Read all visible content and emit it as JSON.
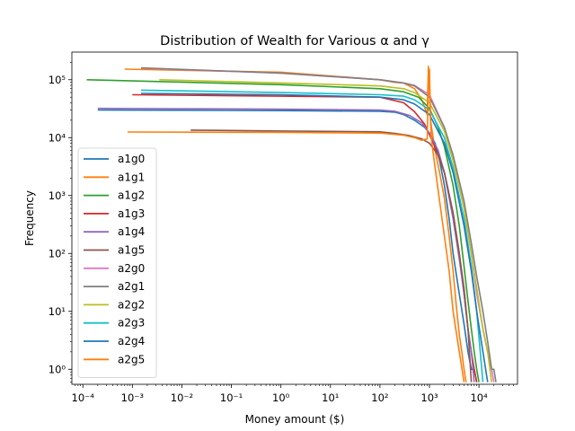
{
  "chart_data": {
    "type": "line",
    "title": "Distribution of Wealth for Various α and γ",
    "xlabel": "Money amount ($)",
    "ylabel": "Frequency",
    "xscale": "log",
    "yscale": "log",
    "xlim": [
      6e-05,
      60000
    ],
    "ylim": [
      0.55,
      300000
    ],
    "xticks": [
      {
        "value": 0.0001,
        "label": "10⁻⁴"
      },
      {
        "value": 0.001,
        "label": "10⁻³"
      },
      {
        "value": 0.01,
        "label": "10⁻²"
      },
      {
        "value": 0.1,
        "label": "10⁻¹"
      },
      {
        "value": 1,
        "label": "10⁰"
      },
      {
        "value": 10,
        "label": "10¹"
      },
      {
        "value": 100,
        "label": "10²"
      },
      {
        "value": 1000,
        "label": "10³"
      },
      {
        "value": 10000,
        "label": "10⁴"
      }
    ],
    "yticks": [
      {
        "value": 1,
        "label": "10⁰"
      },
      {
        "value": 10,
        "label": "10¹"
      },
      {
        "value": 100,
        "label": "10²"
      },
      {
        "value": 1000,
        "label": "10³"
      },
      {
        "value": 10000,
        "label": "10⁴"
      },
      {
        "value": 100000,
        "label": "10⁵"
      }
    ],
    "legend_position": "lower-left",
    "grid": false,
    "series": [
      {
        "name": "a1g0",
        "color": "#1f77b4",
        "x": [
          0.0002,
          1,
          100,
          200,
          300,
          500,
          800,
          1000,
          1300,
          1600,
          2000,
          2500,
          3000,
          4000,
          5000,
          6000,
          7000,
          8000,
          9000
        ],
        "y": [
          30000,
          29300,
          28500,
          27500,
          25000,
          20000,
          15000,
          12000,
          8000,
          4000,
          1500,
          400,
          100,
          20,
          6,
          2,
          1,
          1,
          0.6
        ]
      },
      {
        "name": "a1g1",
        "color": "#ff7f0e",
        "x": [
          0.0007,
          1,
          100,
          200,
          300,
          500,
          700,
          900,
          950,
          1000,
          1050,
          1100,
          1300,
          1600,
          2000,
          2500,
          3000,
          3500,
          4000,
          4500,
          5000,
          5500
        ],
        "y": [
          152000,
          135000,
          100000,
          90000,
          88000,
          70000,
          45000,
          25000,
          170000,
          100000,
          20000,
          15000,
          6000,
          2500,
          900,
          200,
          50,
          12,
          4,
          2,
          1,
          0.6
        ]
      },
      {
        "name": "a1g2",
        "color": "#2ca02c",
        "x": [
          0.00012,
          1,
          100,
          300,
          600,
          1000,
          1500,
          2000,
          3000,
          4000,
          5000,
          6000,
          7000,
          8000,
          9000,
          10000
        ],
        "y": [
          100000,
          82000,
          70000,
          62000,
          50000,
          32000,
          15000,
          7000,
          1500,
          300,
          60,
          15,
          5,
          2,
          1,
          0.6
        ]
      },
      {
        "name": "a1g3",
        "color": "#d62728",
        "x": [
          0.001,
          1,
          100,
          300,
          500,
          800,
          1200,
          2000,
          3000,
          4000,
          5000,
          6000,
          7000,
          8000,
          9000
        ],
        "y": [
          55000,
          52000,
          50000,
          40000,
          28000,
          17000,
          8000,
          2500,
          500,
          100,
          20,
          5,
          2,
          1,
          0.6
        ]
      },
      {
        "name": "a1g4",
        "color": "#9467bd",
        "x": [
          0.0002,
          1,
          100,
          200,
          400,
          700,
          1000,
          1500,
          2000,
          3000,
          4000,
          5000,
          6000,
          7000,
          8000
        ],
        "y": [
          32000,
          31000,
          30000,
          28500,
          24000,
          18000,
          12000,
          6000,
          2500,
          400,
          80,
          20,
          5,
          2,
          0.6
        ]
      },
      {
        "name": "a1g5",
        "color": "#8c564b",
        "x": [
          0.015,
          1,
          100,
          200,
          400,
          700,
          1000,
          1500,
          2000,
          3000,
          4000,
          5000,
          6000,
          7000
        ],
        "y": [
          13500,
          13000,
          12600,
          11800,
          10800,
          9500,
          8000,
          5000,
          2500,
          500,
          100,
          25,
          5,
          0.6
        ]
      },
      {
        "name": "a2g0",
        "color": "#e377c2",
        "x": [
          0.0015,
          1,
          100,
          300,
          500,
          1000,
          2000,
          3000,
          5000,
          7000,
          9000,
          12000,
          15000,
          18000,
          20000
        ],
        "y": [
          158000,
          130000,
          100000,
          88000,
          80000,
          55000,
          15000,
          4000,
          600,
          100,
          20,
          5,
          2,
          1,
          0.6
        ]
      },
      {
        "name": "a2g1",
        "color": "#7f7f7f",
        "x": [
          0.0015,
          1,
          100,
          300,
          500,
          1000,
          2000,
          3000,
          5000,
          7000,
          9000,
          12000,
          15000,
          18000,
          20000,
          22000
        ],
        "y": [
          160000,
          130000,
          100000,
          88000,
          78000,
          50000,
          15000,
          5000,
          800,
          150,
          40,
          10,
          3,
          1,
          1,
          0.6
        ]
      },
      {
        "name": "a2g2",
        "color": "#bcbd22",
        "x": [
          0.0035,
          1,
          100,
          300,
          500,
          1000,
          2000,
          3000,
          5000,
          7000,
          9000,
          12000,
          15000,
          18000
        ],
        "y": [
          100000,
          88000,
          78000,
          70000,
          60000,
          40000,
          13000,
          4000,
          600,
          100,
          25,
          5,
          2,
          0.6
        ]
      },
      {
        "name": "a2g3",
        "color": "#17becf",
        "x": [
          0.0015,
          1,
          100,
          300,
          500,
          1000,
          2000,
          3000,
          5000,
          7000,
          9000,
          12000
        ],
        "y": [
          66000,
          60000,
          55000,
          52000,
          45000,
          30000,
          10000,
          3000,
          400,
          60,
          10,
          0.6
        ]
      },
      {
        "name": "a2g4",
        "color": "#1f77b4",
        "x": [
          0.0015,
          1,
          100,
          300,
          500,
          1000,
          2000,
          3000,
          5000,
          7000,
          9000,
          12000,
          15000
        ],
        "y": [
          58000,
          55000,
          50000,
          45000,
          38000,
          25000,
          8000,
          2500,
          300,
          50,
          10,
          2,
          0.6
        ]
      },
      {
        "name": "a2g5",
        "color": "#ff7f0e",
        "x": [
          0.0008,
          1,
          100,
          300,
          500,
          700,
          900,
          950,
          1000,
          1050,
          1100,
          1300,
          1600,
          2000,
          2500,
          3000,
          4000,
          5000
        ],
        "y": [
          12500,
          12300,
          12000,
          11000,
          10000,
          9000,
          9500,
          80000,
          150000,
          20000,
          9000,
          3000,
          800,
          200,
          50,
          10,
          2,
          0.6
        ]
      }
    ]
  }
}
